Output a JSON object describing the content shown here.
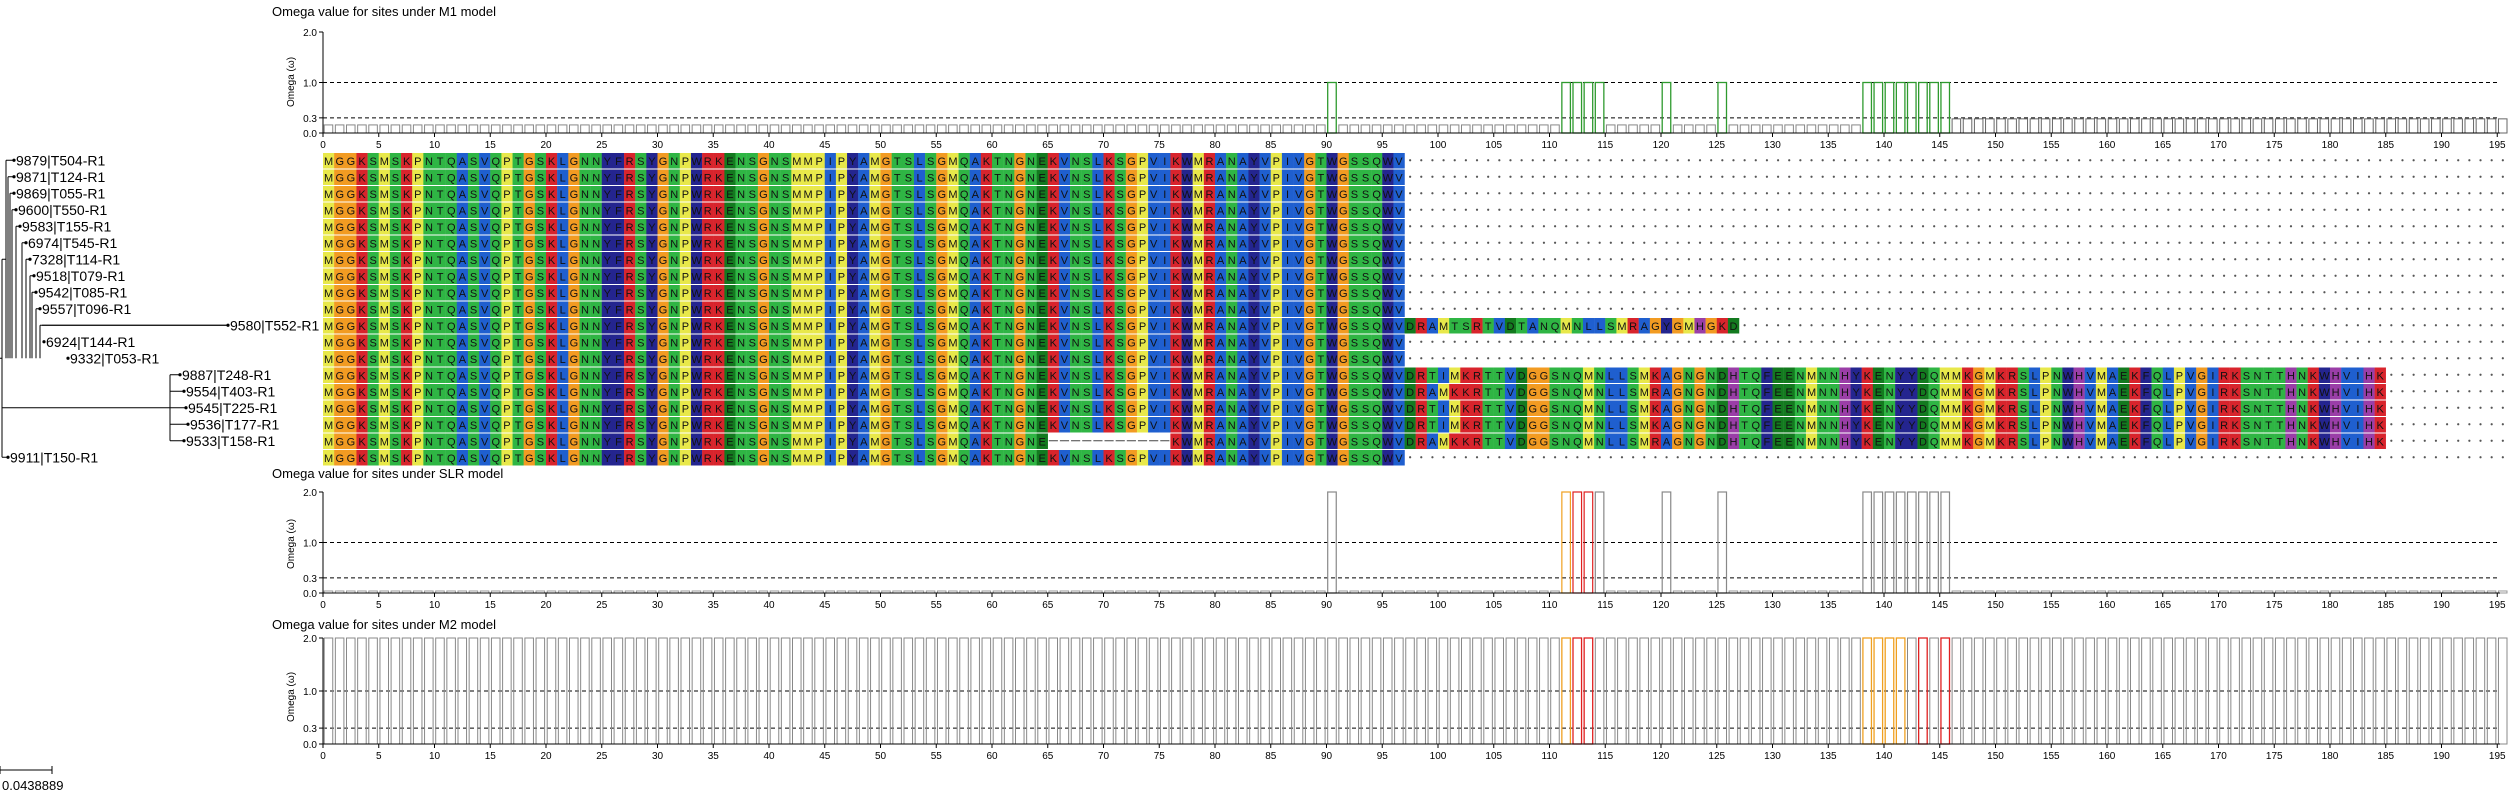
{
  "panels": {
    "m1": {
      "title": "Omega value for sites under M1 model",
      "ylabel": "Omega (ω)"
    },
    "slr": {
      "title": "Omega value for sites under SLR model",
      "ylabel": "Omega (ω)"
    },
    "m2": {
      "title": "Omega value for sites under M2 model",
      "ylabel": "Omega (ω)"
    }
  },
  "scale_label": "0.0438889",
  "omega_ticks": [
    "2.0",
    "1.0",
    "0.3",
    "0.0"
  ],
  "site_ticks": [
    "0",
    "5",
    "10",
    "15",
    "20",
    "25",
    "30",
    "35",
    "40",
    "45",
    "50",
    "55",
    "60",
    "65",
    "70",
    "75",
    "80",
    "85",
    "90",
    "95",
    "100",
    "105",
    "110",
    "115",
    "120",
    "125",
    "130",
    "135",
    "140",
    "145",
    "150",
    "155",
    "160",
    "165",
    "170",
    "175",
    "180",
    "185",
    "190",
    "195"
  ],
  "taxa": [
    "9879|T504-R1",
    "9871|T124-R1",
    "9869|T055-R1",
    "9600|T550-R1",
    "9583|T155-R1",
    "6974|T545-R1",
    "7328|T114-R1",
    "9518|T079-R1",
    "9542|T085-R1",
    "9557|T096-R1",
    "9580|T552-R1",
    "6924|T144-R1",
    "9332|T053-R1",
    "9887|T248-R1",
    "9554|T403-R1",
    "9545|T225-R1",
    "9536|T177-R1",
    "9533|T158-R1",
    "9911|T150-R1"
  ],
  "colors": {
    "m1_bar": "#2e9a2e",
    "slr_bar": "#888888",
    "m2_bar": "#888888",
    "highlight_orange": "#f0a020",
    "highlight_red": "#e02020",
    "yellow": "#e8e84a",
    "orange": "#f29b22",
    "red": "#d8242c",
    "green": "#2fb544",
    "darkgreen": "#137a1f",
    "cyan": "#35c2d9",
    "blue": "#1f5fcf",
    "navy": "#24258f",
    "purple": "#9a3ea7",
    "grey": "#8c8c8c"
  },
  "alignment": {
    "core": "MGGKSMSKPNTQASVQPTGSKLGNNYFRSYGNPWRKENSGNSMMPIPYAMGTSLSGMQAKTNGNEKVNSLKSGPVIKWMRANAYVPIVGTWGSSQWV",
    "ext_a": "DRAMTSRTVDTANQMNLLSMRAGYGMHGKD",
    "ext_b": "DRTIMKRTTVDGGSNQMNLLSMKAGNGNDHTQFEENMNNHYKENYYDQMMKGMKRSLPNWHVMAEKFQLPVGIRKSNTTHNKWHVIHK",
    "ext_c": "DRAMKKRTTVDGGSNQMNLLSMRAGNGNDHTQFEENMNNHYKENYYDQMMKGMKRSLPNWHVMAEKFQLPVGIRKSNTTHNKWHVIHK"
  }
}
